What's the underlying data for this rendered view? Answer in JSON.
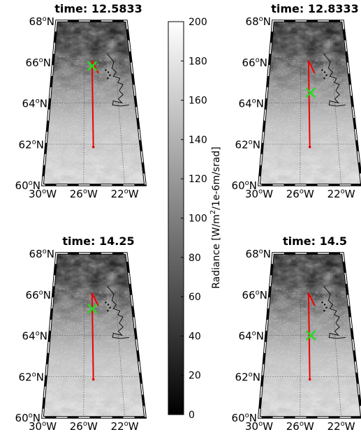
{
  "panels": [
    {
      "title": "time: 12.5833",
      "marker": {
        "lon": -25.0,
        "lat": 65.8
      }
    },
    {
      "title": "time: 12.8333",
      "marker": {
        "lon": -24.8,
        "lat": 64.5
      }
    },
    {
      "title": "time: 14.25",
      "marker": {
        "lon": -25.0,
        "lat": 65.3
      }
    },
    {
      "title": "time: 14.5",
      "marker": {
        "lon": -24.8,
        "lat": 64.0
      }
    }
  ],
  "lat_ticks": [
    {
      "num": "68",
      "deg": "o",
      "hem": "N"
    },
    {
      "num": "66",
      "deg": "o",
      "hem": "N"
    },
    {
      "num": "64",
      "deg": "o",
      "hem": "N"
    },
    {
      "num": "62",
      "deg": "o",
      "hem": "N"
    },
    {
      "num": "60",
      "deg": "o",
      "hem": "N"
    }
  ],
  "lon_ticks": [
    {
      "num": "30",
      "deg": "o",
      "hem": "W"
    },
    {
      "num": "26",
      "deg": "o",
      "hem": "W"
    },
    {
      "num": "22",
      "deg": "o",
      "hem": "W"
    }
  ],
  "colorbar": {
    "label_pre": "Radiance [W/m",
    "label_sup": "2",
    "label_post": "/1e-6m/srad]",
    "ticks": [
      "0",
      "20",
      "40",
      "60",
      "80",
      "100",
      "120",
      "140",
      "160",
      "180",
      "200"
    ],
    "colormap": "grayscale"
  },
  "map_extent": {
    "lon_min": -30,
    "lon_max": -20,
    "lat_min": 60,
    "lat_max": 68
  },
  "flight_track": {
    "color": "#ee0000",
    "points": [
      [
        -25.0,
        61.85
      ],
      [
        -25.0,
        66.05
      ],
      [
        -24.25,
        65.45
      ]
    ]
  },
  "marker_color": "#22dd22"
}
